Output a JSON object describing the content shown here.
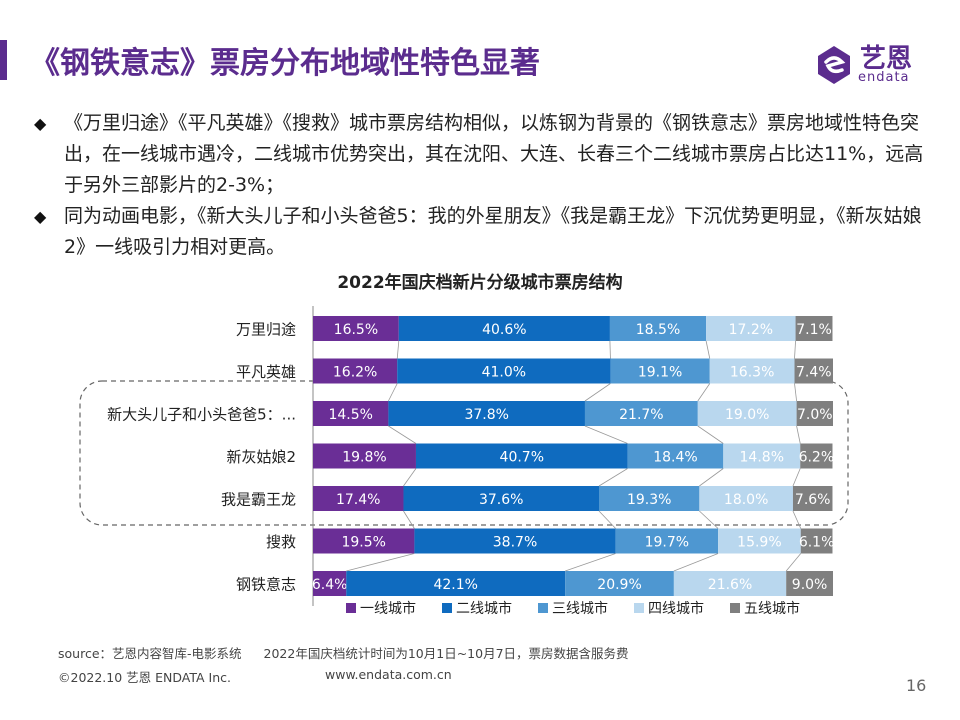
{
  "header": {
    "title": "《钢铁意志》票房分布地域性特色显著",
    "logo_text": "艺恩",
    "logo_sub": "endata"
  },
  "bullets": [
    {
      "text": "《万里归途》《平凡英雄》《搜救》城市票房结构相似，以炼钢为背景的《钢铁意志》票房地域性特色突出，在一线城市遇冷，二线城市优势突出，其在沈阳、大连、长春三个二线城市票房占比达11%，远高于另外三部影片的2-3%；"
    },
    {
      "text": "同为动画电影，《新大头儿子和小头爸爸5：我的外星朋友》《我是霸王龙》下沉优势更明显，《新灰姑娘2》一线吸引力相对更高。"
    }
  ],
  "chart_data": {
    "type": "bar",
    "orientation": "horizontal",
    "stacked": true,
    "percent": true,
    "title": "2022年国庆档新片分级城市票房结构",
    "categories": [
      "万里归途",
      "平凡英雄",
      "新大头儿子和小头爸爸5：...",
      "新灰姑娘2",
      "我是霸王龙",
      "搜救",
      "钢铁意志"
    ],
    "series": [
      {
        "name": "一线城市",
        "color": "#6a2e96",
        "values": [
          16.5,
          16.2,
          14.5,
          19.8,
          17.4,
          19.5,
          6.4
        ]
      },
      {
        "name": "二线城市",
        "color": "#0f6bbf",
        "values": [
          40.6,
          41.0,
          37.8,
          40.7,
          37.6,
          38.7,
          42.1
        ]
      },
      {
        "name": "三线城市",
        "color": "#4e97d1",
        "values": [
          18.5,
          19.1,
          21.7,
          18.4,
          19.3,
          19.7,
          20.9
        ]
      },
      {
        "name": "四线城市",
        "color": "#b9d7ee",
        "values": [
          17.2,
          16.3,
          19.0,
          14.8,
          18.0,
          15.9,
          21.6
        ]
      },
      {
        "name": "五线城市",
        "color": "#7f7f7f",
        "values": [
          7.1,
          7.4,
          7.0,
          6.2,
          7.6,
          6.1,
          9.0
        ]
      }
    ],
    "value_format": "{v}%",
    "legend_position": "bottom",
    "highlight_group": [
      "新大头儿子和小头爸爸5：...",
      "新灰姑娘2",
      "我是霸王龙"
    ]
  },
  "footer": {
    "source": "source：艺恩内容智库-电影系统",
    "note": "2022年国庆档统计时间为10月1日~10月7日，票房数据含服务费",
    "copyright": "©2022.10 艺恩 ENDATA Inc.",
    "url": "www.endata.com.cn",
    "page_number": "16"
  }
}
